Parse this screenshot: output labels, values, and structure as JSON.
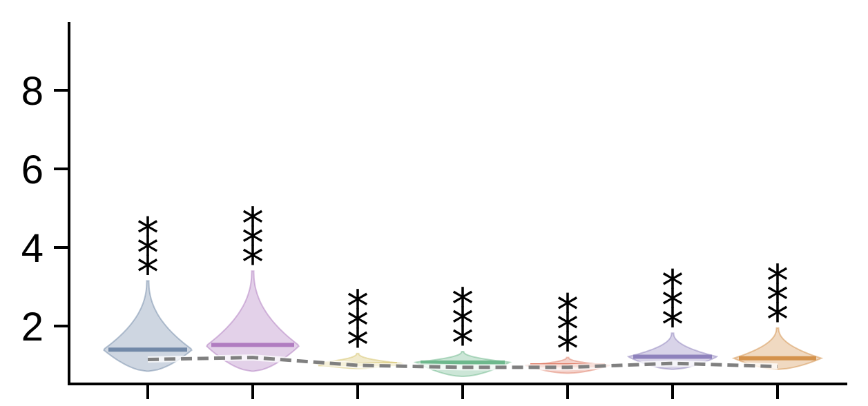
{
  "chart_data": {
    "type": "violin",
    "title": "",
    "xlabel": "",
    "ylabel": "",
    "ylim": [
      0.6,
      9.8
    ],
    "yticks": [
      2,
      4,
      6,
      8
    ],
    "ytick_labels": [
      "2",
      "4",
      "6",
      "8"
    ],
    "categories": [
      "",
      "",
      "",
      "",
      "",
      "",
      ""
    ],
    "grid": false,
    "violins": [
      {
        "min": 0.85,
        "max": 3.15,
        "mode": 1.4,
        "median": 1.4,
        "color": "#7289a8",
        "significance": "***"
      },
      {
        "min": 0.85,
        "max": 3.4,
        "mode": 1.5,
        "median": 1.52,
        "color": "#b07cc0",
        "significance": "***"
      },
      {
        "min": 0.92,
        "max": 1.3,
        "mode": 1.05,
        "median": 1.03,
        "color": "#d6c46c",
        "significance": "***"
      },
      {
        "min": 0.72,
        "max": 1.35,
        "mode": 1.08,
        "median": 1.07,
        "color": "#6db88c",
        "significance": "***"
      },
      {
        "min": 0.8,
        "max": 1.2,
        "mode": 1.0,
        "median": 1.0,
        "color": "#e07f6a",
        "significance": "***"
      },
      {
        "min": 0.9,
        "max": 1.82,
        "mode": 1.22,
        "median": 1.22,
        "color": "#8e82bc",
        "significance": "***"
      },
      {
        "min": 0.9,
        "max": 1.95,
        "mode": 1.18,
        "median": 1.18,
        "color": "#d4924c",
        "significance": "***"
      }
    ],
    "reference_line": {
      "values": [
        1.15,
        1.2,
        1.0,
        0.95,
        0.95,
        1.05,
        0.97
      ],
      "style": "dashed",
      "color": "#808080"
    }
  }
}
